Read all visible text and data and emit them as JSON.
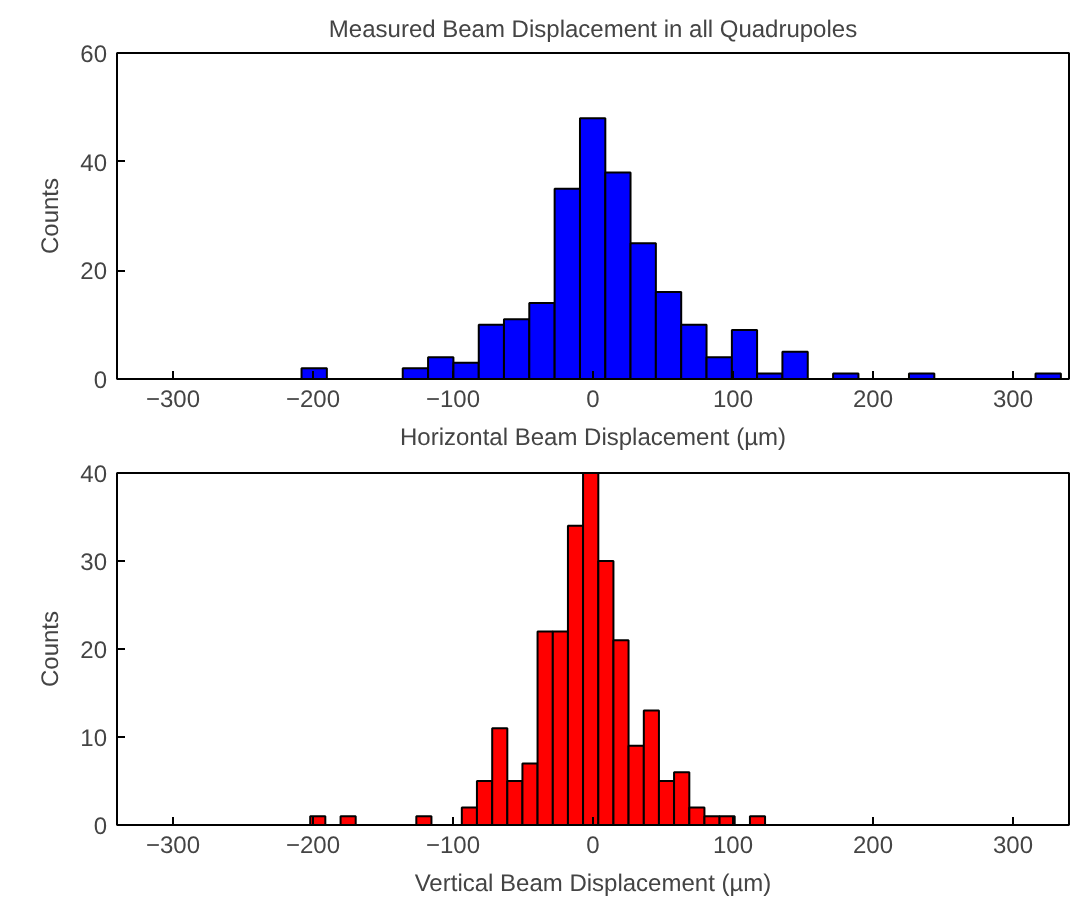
{
  "chart_data": [
    {
      "type": "histogram",
      "title": "Measured Beam Displacement in all Quadrupoles",
      "xlabel": "Horizontal Beam Displacement (µm)",
      "ylabel": "Counts",
      "color": "#0000ff",
      "bins": [
        -208.2,
        -190.1,
        -172.0,
        -154.0,
        -135.9,
        -117.8,
        -99.7,
        -81.6,
        -63.6,
        -45.5,
        -27.4,
        -9.3,
        8.8,
        26.8,
        44.9,
        63.0,
        81.1,
        99.2,
        117.2,
        135.3,
        153.4,
        171.5,
        189.6,
        207.6,
        225.7,
        243.8,
        261.9,
        280.0,
        298.0,
        316.1,
        334.2
      ],
      "values": [
        2,
        0,
        0,
        0,
        2,
        4,
        3,
        10,
        11,
        14,
        35,
        48,
        38,
        25,
        16,
        10,
        4,
        9,
        1,
        5,
        0,
        1,
        0,
        0,
        1,
        0,
        0,
        0,
        0,
        1
      ],
      "xlim": [
        -340,
        340
      ],
      "xticks": [
        -300,
        -200,
        -100,
        0,
        100,
        200,
        300
      ],
      "ylim": [
        0,
        60
      ],
      "yticks": [
        0,
        20,
        40,
        60
      ],
      "grid": false
    },
    {
      "type": "histogram",
      "xlabel": "Vertical Beam Displacement (µm)",
      "ylabel": "Counts",
      "color": "#ff0000",
      "bins": [
        -202.0,
        -191.2,
        -180.3,
        -169.5,
        -158.7,
        -147.9,
        -137.0,
        -126.2,
        -115.4,
        -104.5,
        -93.7,
        -82.9,
        -72.0,
        -61.2,
        -50.4,
        -39.6,
        -28.7,
        -17.9,
        -7.1,
        3.8,
        14.6,
        25.4,
        36.3,
        47.1,
        57.9,
        68.8,
        79.6,
        90.4,
        101.2,
        112.1,
        122.9
      ],
      "values": [
        1,
        0,
        1,
        0,
        0,
        0,
        0,
        1,
        0,
        0,
        2,
        5,
        11,
        5,
        7,
        22,
        22,
        34,
        40,
        30,
        21,
        9,
        13,
        5,
        6,
        2,
        1,
        1,
        0,
        1
      ],
      "xlim": [
        -340,
        340
      ],
      "xticks": [
        -300,
        -200,
        -100,
        0,
        100,
        200,
        300
      ],
      "ylim": [
        0,
        40
      ],
      "yticks": [
        0,
        10,
        20,
        30,
        40
      ],
      "grid": false
    }
  ]
}
